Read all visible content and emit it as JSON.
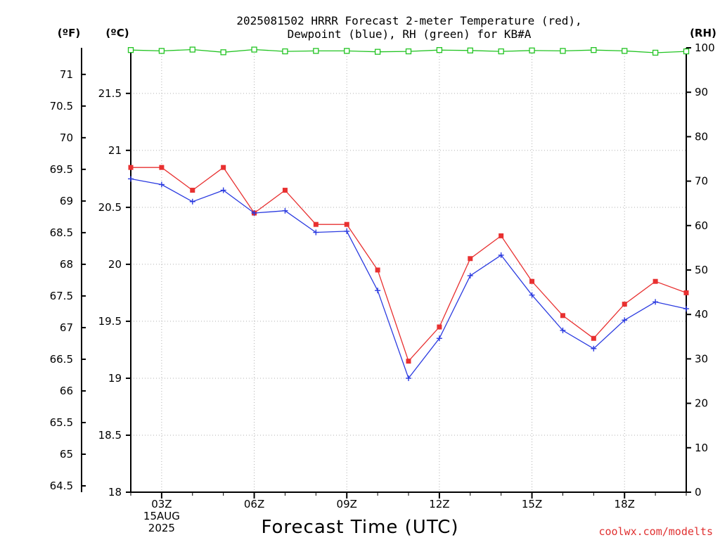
{
  "chart_data": {
    "type": "line",
    "title_lines": [
      "2025081502 HRRR Forecast 2-meter Temperature (red),",
      "Dewpoint (blue), RH (green) for KB#A"
    ],
    "xlabel": "Forecast Time (UTC)",
    "credit": "coolwx.com/modelts",
    "unit_labels": {
      "fahrenheit": "(ºF)",
      "celsius": "(ºC)",
      "rh": "(RH)"
    },
    "x": [
      "02Z",
      "03Z",
      "04Z",
      "05Z",
      "06Z",
      "07Z",
      "08Z",
      "09Z",
      "10Z",
      "11Z",
      "12Z",
      "13Z",
      "14Z",
      "15Z",
      "16Z",
      "17Z",
      "18Z",
      "19Z",
      "20Z"
    ],
    "x_tick_labels": [
      {
        "hour": "03Z",
        "lines": [
          "03Z",
          "15AUG",
          "2025"
        ]
      },
      {
        "hour": "06Z",
        "lines": [
          "06Z"
        ]
      },
      {
        "hour": "09Z",
        "lines": [
          "09Z"
        ]
      },
      {
        "hour": "12Z",
        "lines": [
          "12Z"
        ]
      },
      {
        "hour": "15Z",
        "lines": [
          "15Z"
        ]
      },
      {
        "hour": "18Z",
        "lines": [
          "18Z"
        ]
      }
    ],
    "y_celsius_range": [
      18,
      21.9
    ],
    "y_celsius_ticks": [
      "18",
      "18.5",
      "19",
      "19.5",
      "20",
      "20.5",
      "21",
      "21.5"
    ],
    "y_fahrenheit_ticks": [
      "64.5",
      "65",
      "65.5",
      "66",
      "66.5",
      "67",
      "67.5",
      "68",
      "68.5",
      "69",
      "69.5",
      "70",
      "70.5",
      "71"
    ],
    "y_rh_range": [
      0,
      100
    ],
    "y_rh_ticks": [
      "0",
      "10",
      "20",
      "30",
      "40",
      "50",
      "60",
      "70",
      "80",
      "90",
      "100"
    ],
    "grid": true,
    "series": [
      {
        "name": "Temperature",
        "color": "#e83030",
        "marker": "square",
        "values": [
          20.85,
          20.85,
          20.65,
          20.85,
          20.45,
          20.65,
          20.35,
          20.35,
          19.95,
          19.15,
          19.45,
          20.05,
          20.25,
          19.85,
          19.55,
          19.35,
          19.65,
          19.85,
          19.75
        ]
      },
      {
        "name": "Dewpoint",
        "color": "#2a3ae0",
        "marker": "plus",
        "values": [
          20.75,
          20.7,
          20.55,
          20.65,
          20.45,
          20.47,
          20.28,
          20.29,
          19.77,
          19.0,
          19.35,
          19.9,
          20.08,
          19.73,
          19.42,
          19.26,
          19.51,
          19.67,
          19.61
        ]
      },
      {
        "name": "RH",
        "color": "#22c422",
        "marker": "open-square",
        "values": [
          99.5,
          99.3,
          99.6,
          99.0,
          99.6,
          99.2,
          99.3,
          99.3,
          99.1,
          99.2,
          99.5,
          99.4,
          99.2,
          99.4,
          99.3,
          99.5,
          99.3,
          98.9,
          99.2
        ]
      }
    ]
  }
}
